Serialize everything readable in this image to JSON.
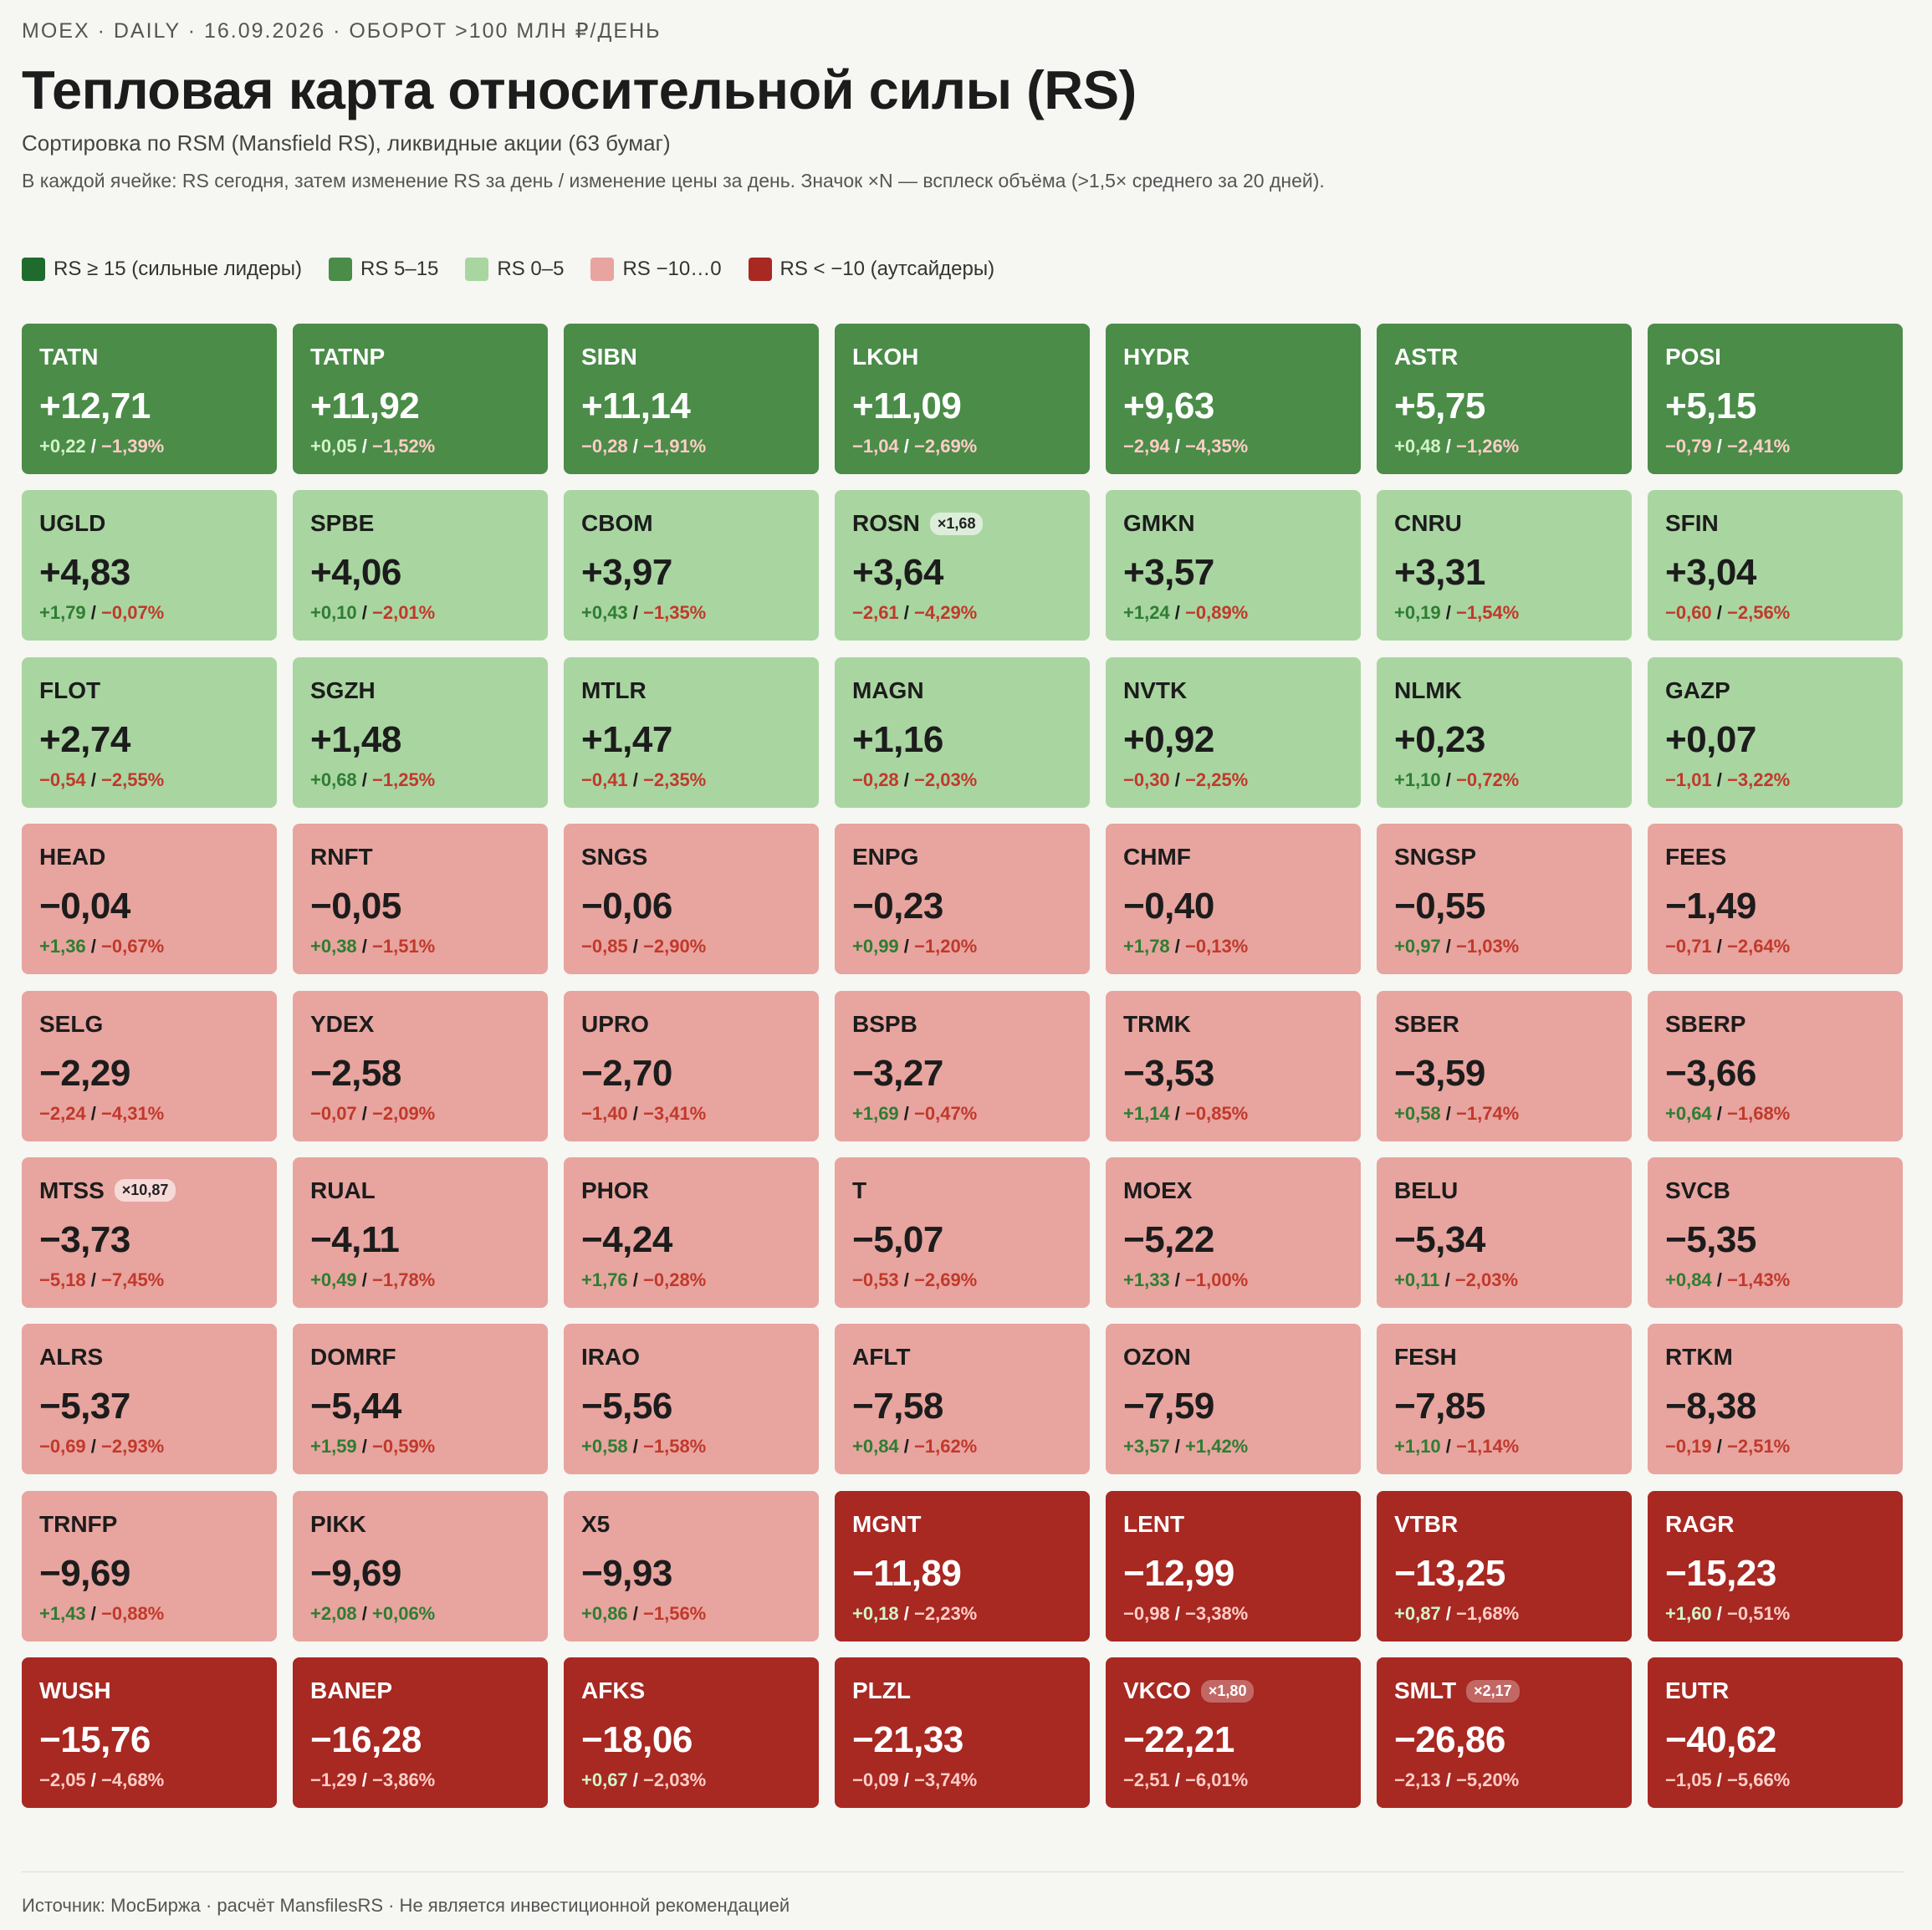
{
  "header": {
    "kicker": "MOEX · DAILY · 16.09.2026 · ОБОРОТ >100 МЛН ₽/ДЕНЬ",
    "title": "Тепловая карта относительной силы (RS)",
    "subtitle": "Сортировка по RSM (Mansfield RS), ликвидные акции (63 бумаг)",
    "description": "В каждой ячейке: RS сегодня, затем изменение RS за день / изменение цены за день. Значок ×N — всплеск объёма (>1,5× среднего за 20 дней)."
  },
  "legend": [
    {
      "label": "RS ≥ 15 (сильные лидеры)",
      "color": "#1f6b2e",
      "dark": true
    },
    {
      "label": "RS 5–15",
      "color": "#4a8c48",
      "dark": true
    },
    {
      "label": "RS 0–5",
      "color": "#a9d5a1",
      "dark": false
    },
    {
      "label": "RS −10…0",
      "color": "#e8a49f",
      "dark": false
    },
    {
      "label": "RS < −10 (аутсайдеры)",
      "color": "#a82822",
      "dark": true
    }
  ],
  "tiles": [
    {
      "ticker": "TATN",
      "rs": "+12,71",
      "d_rs": "+0,22",
      "d_price": "−1,39%",
      "group": 1
    },
    {
      "ticker": "TATNP",
      "rs": "+11,92",
      "d_rs": "+0,05",
      "d_price": "−1,52%",
      "group": 1
    },
    {
      "ticker": "SIBN",
      "rs": "+11,14",
      "d_rs": "−0,28",
      "d_price": "−1,91%",
      "group": 1
    },
    {
      "ticker": "LKOH",
      "rs": "+11,09",
      "d_rs": "−1,04",
      "d_price": "−2,69%",
      "group": 1
    },
    {
      "ticker": "HYDR",
      "rs": "+9,63",
      "d_rs": "−2,94",
      "d_price": "−4,35%",
      "group": 1
    },
    {
      "ticker": "ASTR",
      "rs": "+5,75",
      "d_rs": "+0,48",
      "d_price": "−1,26%",
      "group": 1
    },
    {
      "ticker": "POSI",
      "rs": "+5,15",
      "d_rs": "−0,79",
      "d_price": "−2,41%",
      "group": 1
    },
    {
      "ticker": "UGLD",
      "rs": "+4,83",
      "d_rs": "+1,79",
      "d_price": "−0,07%",
      "group": 2
    },
    {
      "ticker": "SPBE",
      "rs": "+4,06",
      "d_rs": "+0,10",
      "d_price": "−2,01%",
      "group": 2
    },
    {
      "ticker": "CBOM",
      "rs": "+3,97",
      "d_rs": "+0,43",
      "d_price": "−1,35%",
      "group": 2
    },
    {
      "ticker": "ROSN",
      "badge": "×1,68",
      "rs": "+3,64",
      "d_rs": "−2,61",
      "d_price": "−4,29%",
      "group": 2
    },
    {
      "ticker": "GMKN",
      "rs": "+3,57",
      "d_rs": "+1,24",
      "d_price": "−0,89%",
      "group": 2
    },
    {
      "ticker": "CNRU",
      "rs": "+3,31",
      "d_rs": "+0,19",
      "d_price": "−1,54%",
      "group": 2
    },
    {
      "ticker": "SFIN",
      "rs": "+3,04",
      "d_rs": "−0,60",
      "d_price": "−2,56%",
      "group": 2
    },
    {
      "ticker": "FLOT",
      "rs": "+2,74",
      "d_rs": "−0,54",
      "d_price": "−2,55%",
      "group": 2
    },
    {
      "ticker": "SGZH",
      "rs": "+1,48",
      "d_rs": "+0,68",
      "d_price": "−1,25%",
      "group": 2
    },
    {
      "ticker": "MTLR",
      "rs": "+1,47",
      "d_rs": "−0,41",
      "d_price": "−2,35%",
      "group": 2
    },
    {
      "ticker": "MAGN",
      "rs": "+1,16",
      "d_rs": "−0,28",
      "d_price": "−2,03%",
      "group": 2
    },
    {
      "ticker": "NVTK",
      "rs": "+0,92",
      "d_rs": "−0,30",
      "d_price": "−2,25%",
      "group": 2
    },
    {
      "ticker": "NLMK",
      "rs": "+0,23",
      "d_rs": "+1,10",
      "d_price": "−0,72%",
      "group": 2
    },
    {
      "ticker": "GAZP",
      "rs": "+0,07",
      "d_rs": "−1,01",
      "d_price": "−3,22%",
      "group": 2
    },
    {
      "ticker": "HEAD",
      "rs": "−0,04",
      "d_rs": "+1,36",
      "d_price": "−0,67%",
      "group": 3
    },
    {
      "ticker": "RNFT",
      "rs": "−0,05",
      "d_rs": "+0,38",
      "d_price": "−1,51%",
      "group": 3
    },
    {
      "ticker": "SNGS",
      "rs": "−0,06",
      "d_rs": "−0,85",
      "d_price": "−2,90%",
      "group": 3
    },
    {
      "ticker": "ENPG",
      "rs": "−0,23",
      "d_rs": "+0,99",
      "d_price": "−1,20%",
      "group": 3
    },
    {
      "ticker": "CHMF",
      "rs": "−0,40",
      "d_rs": "+1,78",
      "d_price": "−0,13%",
      "group": 3
    },
    {
      "ticker": "SNGSP",
      "rs": "−0,55",
      "d_rs": "+0,97",
      "d_price": "−1,03%",
      "group": 3
    },
    {
      "ticker": "FEES",
      "rs": "−1,49",
      "d_rs": "−0,71",
      "d_price": "−2,64%",
      "group": 3
    },
    {
      "ticker": "SELG",
      "rs": "−2,29",
      "d_rs": "−2,24",
      "d_price": "−4,31%",
      "group": 3
    },
    {
      "ticker": "YDEX",
      "rs": "−2,58",
      "d_rs": "−0,07",
      "d_price": "−2,09%",
      "group": 3
    },
    {
      "ticker": "UPRO",
      "rs": "−2,70",
      "d_rs": "−1,40",
      "d_price": "−3,41%",
      "group": 3
    },
    {
      "ticker": "BSPB",
      "rs": "−3,27",
      "d_rs": "+1,69",
      "d_price": "−0,47%",
      "group": 3
    },
    {
      "ticker": "TRMK",
      "rs": "−3,53",
      "d_rs": "+1,14",
      "d_price": "−0,85%",
      "group": 3
    },
    {
      "ticker": "SBER",
      "rs": "−3,59",
      "d_rs": "+0,58",
      "d_price": "−1,74%",
      "group": 3
    },
    {
      "ticker": "SBERP",
      "rs": "−3,66",
      "d_rs": "+0,64",
      "d_price": "−1,68%",
      "group": 3
    },
    {
      "ticker": "MTSS",
      "badge": "×10,87",
      "rs": "−3,73",
      "d_rs": "−5,18",
      "d_price": "−7,45%",
      "group": 3
    },
    {
      "ticker": "RUAL",
      "rs": "−4,11",
      "d_rs": "+0,49",
      "d_price": "−1,78%",
      "group": 3
    },
    {
      "ticker": "PHOR",
      "rs": "−4,24",
      "d_rs": "+1,76",
      "d_price": "−0,28%",
      "group": 3
    },
    {
      "ticker": "T",
      "rs": "−5,07",
      "d_rs": "−0,53",
      "d_price": "−2,69%",
      "group": 3
    },
    {
      "ticker": "MOEX",
      "rs": "−5,22",
      "d_rs": "+1,33",
      "d_price": "−1,00%",
      "group": 3
    },
    {
      "ticker": "BELU",
      "rs": "−5,34",
      "d_rs": "+0,11",
      "d_price": "−2,03%",
      "group": 3
    },
    {
      "ticker": "SVCB",
      "rs": "−5,35",
      "d_rs": "+0,84",
      "d_price": "−1,43%",
      "group": 3
    },
    {
      "ticker": "ALRS",
      "rs": "−5,37",
      "d_rs": "−0,69",
      "d_price": "−2,93%",
      "group": 3
    },
    {
      "ticker": "DOMRF",
      "rs": "−5,44",
      "d_rs": "+1,59",
      "d_price": "−0,59%",
      "group": 3
    },
    {
      "ticker": "IRAO",
      "rs": "−5,56",
      "d_rs": "+0,58",
      "d_price": "−1,58%",
      "group": 3
    },
    {
      "ticker": "AFLT",
      "rs": "−7,58",
      "d_rs": "+0,84",
      "d_price": "−1,62%",
      "group": 3
    },
    {
      "ticker": "OZON",
      "rs": "−7,59",
      "d_rs": "+3,57",
      "d_price": "+1,42%",
      "group": 3
    },
    {
      "ticker": "FESH",
      "rs": "−7,85",
      "d_rs": "+1,10",
      "d_price": "−1,14%",
      "group": 3
    },
    {
      "ticker": "RTKM",
      "rs": "−8,38",
      "d_rs": "−0,19",
      "d_price": "−2,51%",
      "group": 3
    },
    {
      "ticker": "TRNFP",
      "rs": "−9,69",
      "d_rs": "+1,43",
      "d_price": "−0,88%",
      "group": 3
    },
    {
      "ticker": "PIKK",
      "rs": "−9,69",
      "d_rs": "+2,08",
      "d_price": "+0,06%",
      "group": 3
    },
    {
      "ticker": "X5",
      "rs": "−9,93",
      "d_rs": "+0,86",
      "d_price": "−1,56%",
      "group": 3
    },
    {
      "ticker": "MGNT",
      "rs": "−11,89",
      "d_rs": "+0,18",
      "d_price": "−2,23%",
      "group": 4
    },
    {
      "ticker": "LENT",
      "rs": "−12,99",
      "d_rs": "−0,98",
      "d_price": "−3,38%",
      "group": 4
    },
    {
      "ticker": "VTBR",
      "rs": "−13,25",
      "d_rs": "+0,87",
      "d_price": "−1,68%",
      "group": 4
    },
    {
      "ticker": "RAGR",
      "rs": "−15,23",
      "d_rs": "+1,60",
      "d_price": "−0,51%",
      "group": 4
    },
    {
      "ticker": "WUSH",
      "rs": "−15,76",
      "d_rs": "−2,05",
      "d_price": "−4,68%",
      "group": 4
    },
    {
      "ticker": "BANEP",
      "rs": "−16,28",
      "d_rs": "−1,29",
      "d_price": "−3,86%",
      "group": 4
    },
    {
      "ticker": "AFKS",
      "rs": "−18,06",
      "d_rs": "+0,67",
      "d_price": "−2,03%",
      "group": 4
    },
    {
      "ticker": "PLZL",
      "rs": "−21,33",
      "d_rs": "−0,09",
      "d_price": "−3,74%",
      "group": 4
    },
    {
      "ticker": "VKCO",
      "badge": "×1,80",
      "rs": "−22,21",
      "d_rs": "−2,51",
      "d_price": "−6,01%",
      "group": 4
    },
    {
      "ticker": "SMLT",
      "badge": "×2,17",
      "rs": "−26,86",
      "d_rs": "−2,13",
      "d_price": "−5,20%",
      "group": 4
    },
    {
      "ticker": "EUTR",
      "rs": "−40,62",
      "d_rs": "−1,05",
      "d_price": "−5,66%",
      "group": 4
    }
  ],
  "footer": "Источник: МосБиржа · расчёт MansfilesRS · Не является инвестиционной рекомендацией"
}
